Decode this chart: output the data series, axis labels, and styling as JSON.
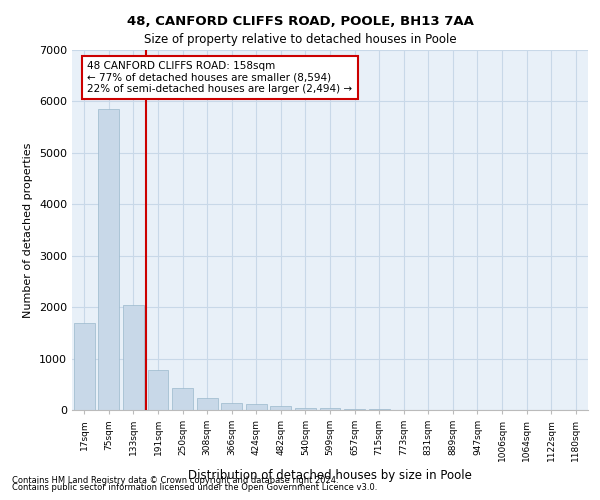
{
  "title1": "48, CANFORD CLIFFS ROAD, POOLE, BH13 7AA",
  "title2": "Size of property relative to detached houses in Poole",
  "xlabel": "Distribution of detached houses by size in Poole",
  "ylabel": "Number of detached properties",
  "bar_color": "#c8d8e8",
  "bar_edge_color": "#9ab8cc",
  "grid_color": "#c8d8e8",
  "background_color": "#e8f0f8",
  "categories": [
    "17sqm",
    "75sqm",
    "133sqm",
    "191sqm",
    "250sqm",
    "308sqm",
    "366sqm",
    "424sqm",
    "482sqm",
    "540sqm",
    "599sqm",
    "657sqm",
    "715sqm",
    "773sqm",
    "831sqm",
    "889sqm",
    "947sqm",
    "1006sqm",
    "1064sqm",
    "1122sqm",
    "1180sqm"
  ],
  "values": [
    1700,
    5850,
    2050,
    780,
    420,
    230,
    130,
    110,
    70,
    45,
    35,
    25,
    20,
    5,
    5,
    3,
    2,
    2,
    1,
    1,
    1
  ],
  "ylim": [
    0,
    7000
  ],
  "yticks": [
    0,
    1000,
    2000,
    3000,
    4000,
    5000,
    6000,
    7000
  ],
  "vline_x": 2.5,
  "vline_color": "#cc0000",
  "annotation_text": "48 CANFORD CLIFFS ROAD: 158sqm\n← 77% of detached houses are smaller (8,594)\n22% of semi-detached houses are larger (2,494) →",
  "annotation_box_color": "#ffffff",
  "annotation_box_edge": "#cc0000",
  "footnote1": "Contains HM Land Registry data © Crown copyright and database right 2024.",
  "footnote2": "Contains public sector information licensed under the Open Government Licence v3.0."
}
